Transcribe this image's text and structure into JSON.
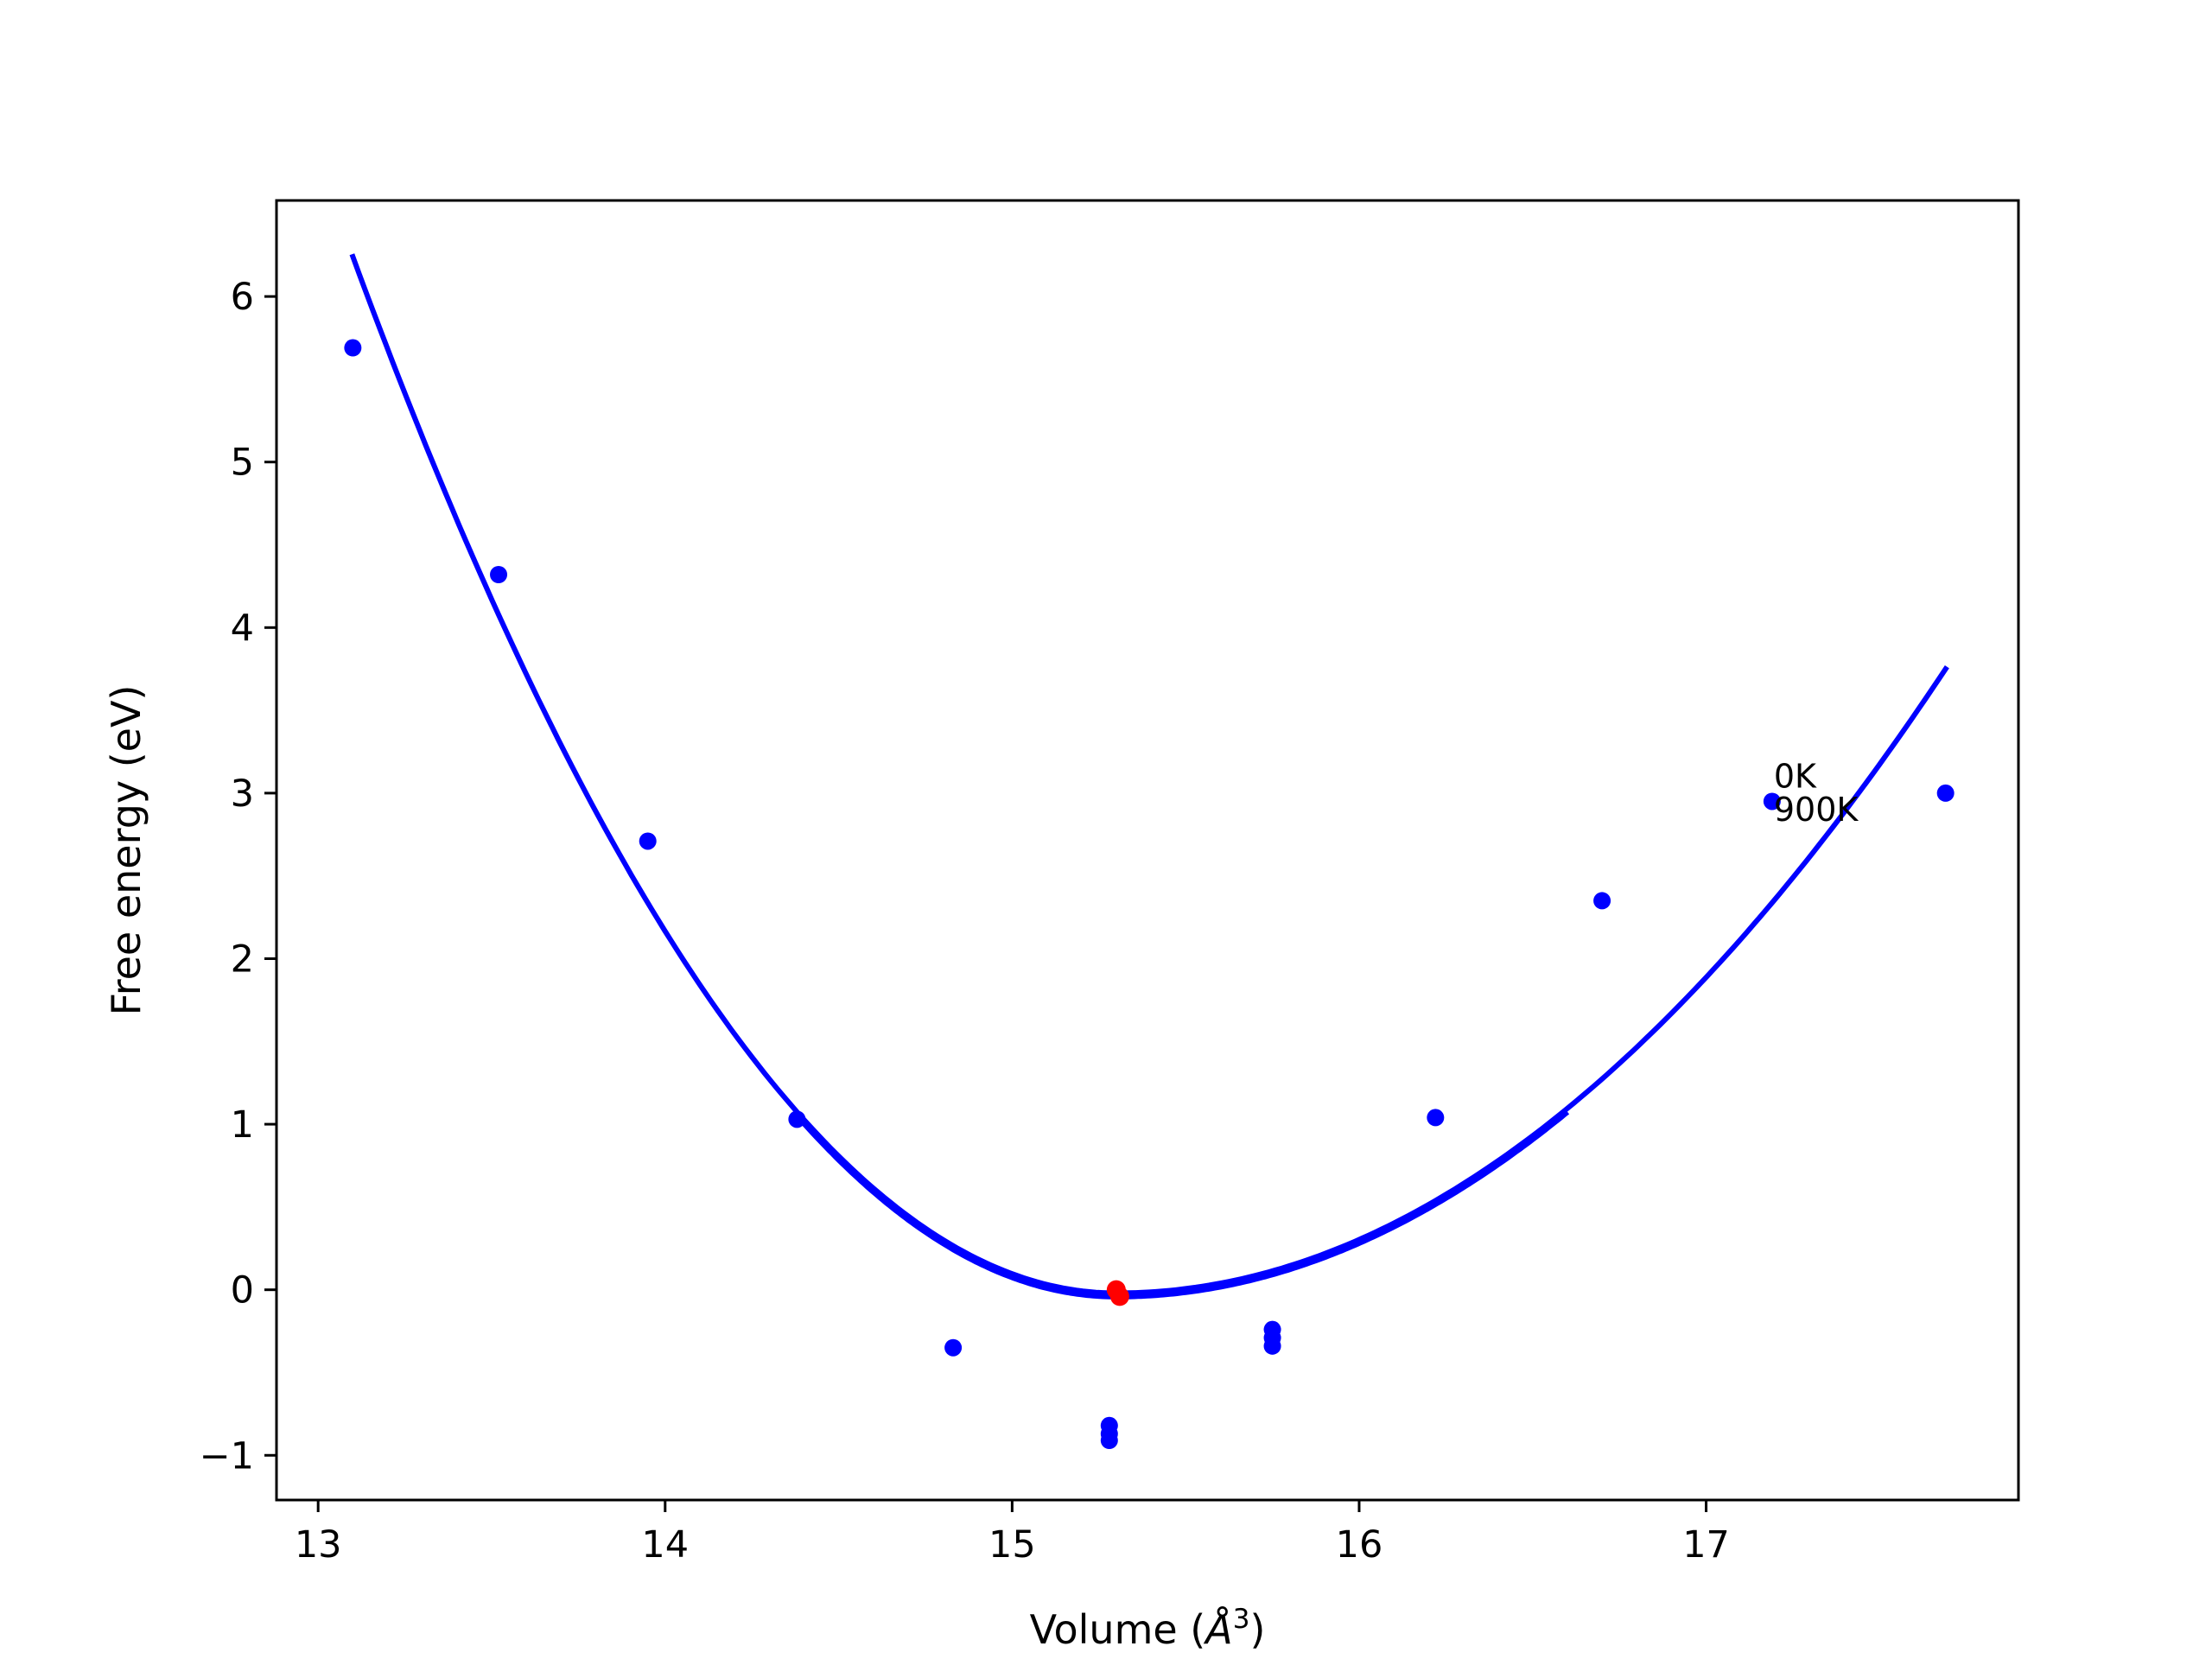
{
  "chart_data": {
    "type": "scatter",
    "title": "",
    "xlabel": "Volume (",
    "xlabel_unit": "Å",
    "xlabel_exponent": "3",
    "xlabel_close": ")",
    "ylabel": "Free energy (eV)",
    "xlim": [
      12.88,
      17.9
    ],
    "ylim": [
      -1.27,
      6.58
    ],
    "xticks": [
      13,
      14,
      15,
      16,
      17
    ],
    "yticks": [
      -1,
      0,
      1,
      2,
      3,
      4,
      5,
      6
    ],
    "xtick_labels": [
      "13",
      "14",
      "15",
      "16",
      "17"
    ],
    "ytick_labels": [
      "−1",
      "0",
      "1",
      "2",
      "3",
      "4",
      "5",
      "6"
    ],
    "grid": false,
    "colors": {
      "points": "#0000ff",
      "fit": "#0000ff",
      "minimum": "#ff0000",
      "axes": "#000000"
    },
    "series": [
      {
        "kind": "points",
        "x": [
          13.1,
          13.52,
          13.95,
          14.38,
          14.83,
          15.28,
          15.28,
          15.28,
          15.75,
          15.75,
          15.75,
          16.22,
          16.7,
          17.19,
          17.69
        ],
        "y": [
          5.69,
          4.32,
          2.71,
          1.03,
          -0.35,
          -0.82,
          -0.87,
          -0.91,
          -0.24,
          -0.29,
          -0.34,
          1.04,
          2.35,
          2.95,
          3.0
        ]
      },
      {
        "kind": "fit_curve",
        "x_range": [
          13.1,
          17.69
        ],
        "x_min": 15.3,
        "y_min": -0.02,
        "y_at_start": 6.24,
        "y_at_end": 3.75
      },
      {
        "kind": "minimum",
        "x": [
          15.3,
          15.31
        ],
        "y": [
          0.0,
          -0.04
        ]
      }
    ],
    "annotations": [
      {
        "text": "0K",
        "x": 17.19,
        "y": 3.1
      },
      {
        "text": "900K",
        "x": 17.19,
        "y": 2.9
      }
    ]
  }
}
